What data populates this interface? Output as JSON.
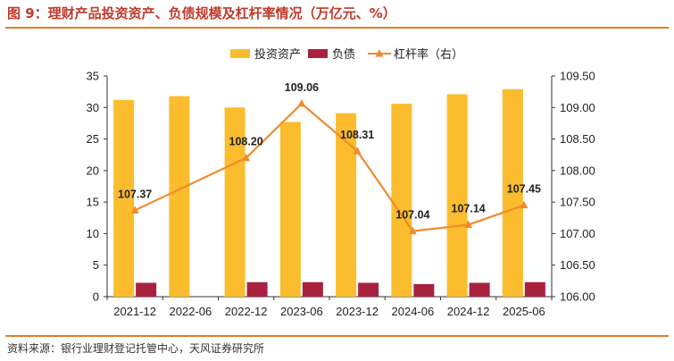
{
  "title": "图 9：理财产品投资资产、负债规模及杠杆率情况（万亿元、%）",
  "source": "资料来源：银行业理财登记托管中心，天风证券研究所",
  "colors": {
    "investment": "#fbbd2d",
    "debt": "#a8223f",
    "leverage": "#f08a2c",
    "accent": "#e07b2a"
  },
  "legend": [
    {
      "label": "投资资产",
      "marker": "bar",
      "color": "#fbbd2d"
    },
    {
      "label": "负债",
      "marker": "bar",
      "color": "#a8223f"
    },
    {
      "label": "杠杆率（右）",
      "marker": "line-triangle",
      "color": "#f08a2c"
    }
  ],
  "chart_data": {
    "type": "bar",
    "categories": [
      "2021-12",
      "2022-06",
      "2022-12",
      "2023-06",
      "2023-12",
      "2024-06",
      "2024-12",
      "2025-06"
    ],
    "series": [
      {
        "name": "投资资产",
        "type": "bar",
        "axis": "left",
        "values": [
          31.2,
          31.8,
          30.0,
          27.7,
          29.1,
          30.6,
          32.1,
          32.9
        ]
      },
      {
        "name": "负债",
        "type": "bar",
        "axis": "left",
        "values": [
          2.2,
          null,
          2.3,
          2.3,
          2.2,
          2.0,
          2.2,
          2.3
        ]
      },
      {
        "name": "杠杆率（右）",
        "type": "line",
        "axis": "right",
        "values": [
          107.37,
          null,
          108.2,
          109.06,
          108.31,
          107.04,
          107.14,
          107.45
        ]
      }
    ],
    "yleft": {
      "min": 0,
      "max": 35,
      "step": 5,
      "ticks": [
        "0",
        "5",
        "10",
        "15",
        "20",
        "25",
        "30",
        "35"
      ]
    },
    "yright": {
      "min": 106.0,
      "max": 109.5,
      "step": 0.5,
      "ticks": [
        "106.00",
        "106.50",
        "107.00",
        "107.50",
        "108.00",
        "108.50",
        "109.00",
        "109.50"
      ]
    },
    "data_labels": [
      "107.37",
      "",
      "108.20",
      "109.06",
      "108.31",
      "107.04",
      "107.14",
      "107.45"
    ],
    "grid": false,
    "legend_position": "top-center"
  }
}
